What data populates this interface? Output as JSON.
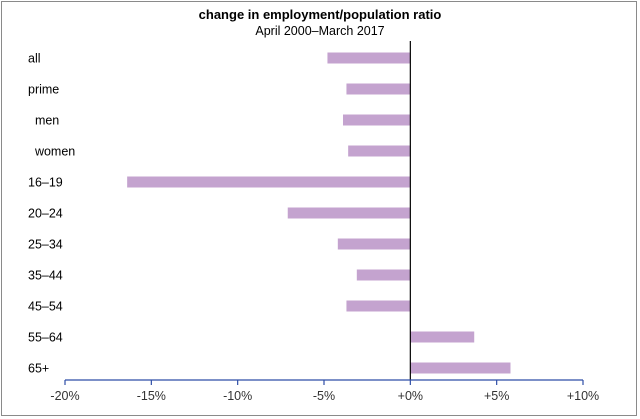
{
  "chart_data": {
    "type": "bar",
    "orientation": "horizontal",
    "title": "change in employment/population ratio",
    "subtitle": "April 2000–March 2017",
    "categories": [
      "all",
      "prime",
      "  men",
      "  women",
      "16–19",
      "20–24",
      "25–34",
      "35–44",
      "45–54",
      "55–64",
      "65+"
    ],
    "values": [
      -4.8,
      -3.7,
      -3.9,
      -3.6,
      -16.4,
      -7.1,
      -4.2,
      -3.1,
      -3.7,
      3.7,
      5.8
    ],
    "xlim": [
      -20,
      10
    ],
    "xticks": [
      -20,
      -15,
      -10,
      -5,
      0,
      5,
      10
    ],
    "xtick_labels": [
      "-20%",
      "-15%",
      "-10%",
      "-5%",
      "+0%",
      "+5%",
      "+10%"
    ],
    "xlabel": "",
    "ylabel": "",
    "grid": false,
    "legend": "none",
    "colors": {
      "bar": "#c4a3cf",
      "axis": "#2e4ea6",
      "zero_line": "#000000"
    }
  }
}
